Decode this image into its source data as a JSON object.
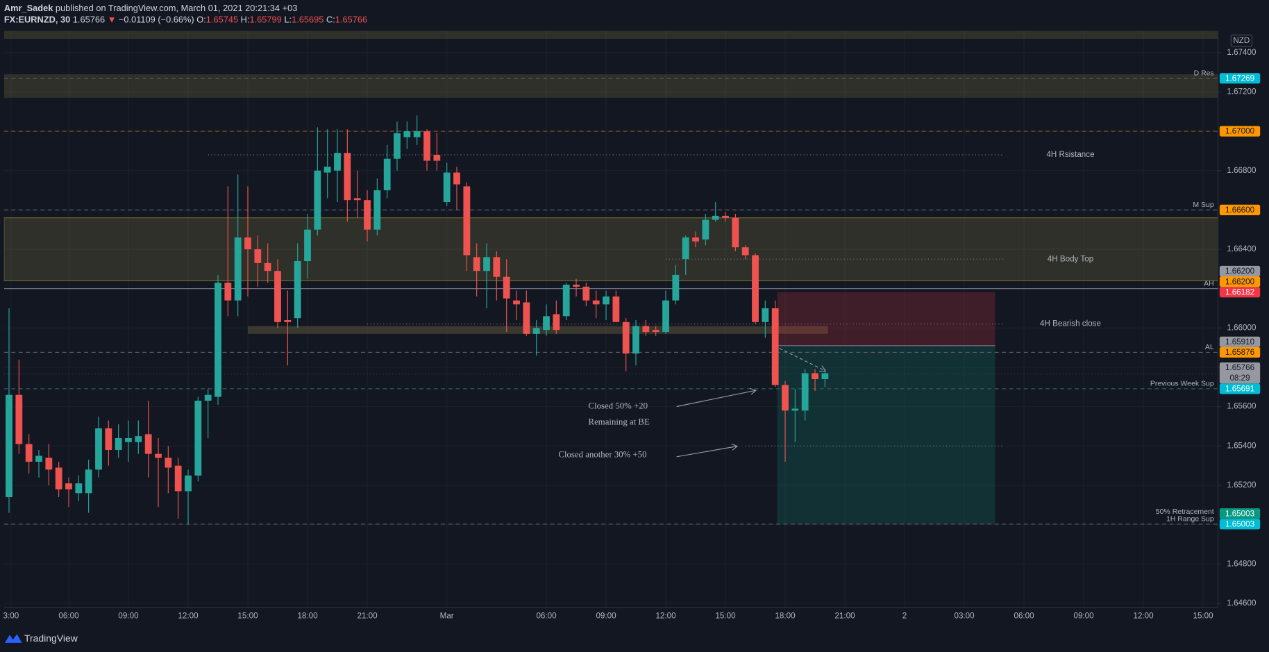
{
  "header": {
    "author": "Amr_Sadek",
    "published": "published on TradingView.com, March 01, 2021 20:21:34 +03",
    "symbol": "FX:EURNZD, 30",
    "last": "1.65766",
    "direction": "▼",
    "change": "−0.01109 (−0.66%)",
    "ohlc": [
      {
        "label": "O:",
        "value": "1.65745"
      },
      {
        "label": "H:",
        "value": "1.65799"
      },
      {
        "label": "L:",
        "value": "1.65695"
      },
      {
        "label": "C:",
        "value": "1.65766"
      }
    ]
  },
  "footer": {
    "brand": "TradingView"
  },
  "annotations": [
    "Closed 50% +20",
    "Remaining at BE",
    "Closed another 30% +50"
  ],
  "chart_data": {
    "type": "candlestick",
    "currency": "NZD",
    "up_color": "#26a69a",
    "down_color": "#ef5350",
    "grid": true,
    "ohlc": {
      "open": [
        1.6514,
        1.6566,
        1.6541,
        1.6532,
        1.6534,
        1.6529,
        1.6521,
        1.6516,
        1.6516,
        1.6528,
        1.6549,
        1.6538,
        1.6542,
        1.6542,
        1.6546,
        1.6536,
        1.6534,
        1.653,
        1.6517,
        1.6525,
        1.6563,
        1.6565,
        1.6623,
        1.6614,
        1.6646,
        1.664,
        1.6633,
        1.6629,
        1.6604,
        1.6605,
        1.6634,
        1.665,
        1.6679,
        1.668,
        1.6689,
        1.6666,
        1.6665,
        1.665,
        1.667,
        1.6686,
        1.6697,
        1.6697,
        1.67,
        1.6688,
        1.6664,
        1.6679,
        1.6672,
        1.6636,
        1.6629,
        1.6636,
        1.6626,
        1.6614,
        1.6613,
        1.6597,
        1.6599,
        1.6607,
        1.6606,
        1.6622,
        1.6621,
        1.6614,
        1.6612,
        1.6616,
        1.6603,
        1.6587,
        1.6601,
        1.6599,
        1.6598,
        1.6614,
        1.6635,
        1.6646,
        1.6645,
        1.6655,
        1.6657,
        1.6656,
        1.6641,
        1.6637,
        1.6603,
        1.661,
        1.6571,
        1.6558,
        1.6558,
        1.6577,
        1.6574
      ],
      "high": [
        1.661,
        1.6584,
        1.6546,
        1.6538,
        1.6541,
        1.6532,
        1.6524,
        1.6525,
        1.6533,
        1.6555,
        1.6553,
        1.6551,
        1.6553,
        1.6553,
        1.6563,
        1.6544,
        1.654,
        1.6534,
        1.6528,
        1.6565,
        1.6569,
        1.6627,
        1.6672,
        1.6678,
        1.6672,
        1.6647,
        1.6643,
        1.6635,
        1.6619,
        1.6643,
        1.6658,
        1.6702,
        1.6701,
        1.6701,
        1.6701,
        1.668,
        1.667,
        1.6676,
        1.6693,
        1.6705,
        1.6705,
        1.6708,
        1.6701,
        1.6699,
        1.6684,
        1.6682,
        1.6674,
        1.6643,
        1.6643,
        1.6639,
        1.6635,
        1.6619,
        1.6619,
        1.6604,
        1.6612,
        1.6614,
        1.6623,
        1.6625,
        1.6623,
        1.6619,
        1.6619,
        1.6619,
        1.6605,
        1.6604,
        1.6604,
        1.6601,
        1.6619,
        1.6632,
        1.6647,
        1.6649,
        1.6658,
        1.6664,
        1.6659,
        1.6658,
        1.6642,
        1.6638,
        1.6614,
        1.6614,
        1.6573,
        1.6569,
        1.6579,
        1.6579,
        1.6579
      ],
      "low": [
        1.6506,
        1.6536,
        1.6526,
        1.6524,
        1.652,
        1.6514,
        1.6509,
        1.6512,
        1.6506,
        1.6524,
        1.653,
        1.6534,
        1.6532,
        1.6536,
        1.6524,
        1.6509,
        1.6516,
        1.6503,
        1.65,
        1.6522,
        1.6544,
        1.6561,
        1.6606,
        1.6606,
        1.6616,
        1.6621,
        1.6623,
        1.66,
        1.6581,
        1.66,
        1.6625,
        1.6647,
        1.6666,
        1.6664,
        1.6654,
        1.6656,
        1.6644,
        1.6647,
        1.6666,
        1.668,
        1.6691,
        1.6693,
        1.668,
        1.668,
        1.6662,
        1.666,
        1.6629,
        1.6616,
        1.661,
        1.6614,
        1.6598,
        1.6604,
        1.6596,
        1.6586,
        1.6596,
        1.6597,
        1.6604,
        1.6616,
        1.6611,
        1.6605,
        1.6604,
        1.6603,
        1.6578,
        1.6581,
        1.6596,
        1.6596,
        1.6597,
        1.6612,
        1.6627,
        1.6641,
        1.6642,
        1.6654,
        1.6654,
        1.6639,
        1.6635,
        1.6602,
        1.6595,
        1.657,
        1.6532,
        1.6542,
        1.6553,
        1.6568,
        1.657
      ],
      "close": [
        1.6566,
        1.6541,
        1.6532,
        1.6535,
        1.6528,
        1.6518,
        1.6518,
        1.6521,
        1.6528,
        1.6549,
        1.6538,
        1.6544,
        1.6544,
        1.6545,
        1.6536,
        1.6534,
        1.6529,
        1.6517,
        1.6525,
        1.6563,
        1.6566,
        1.6623,
        1.6614,
        1.6646,
        1.664,
        1.6633,
        1.6629,
        1.6603,
        1.6603,
        1.6634,
        1.665,
        1.668,
        1.6682,
        1.6689,
        1.6665,
        1.6665,
        1.665,
        1.667,
        1.6686,
        1.6699,
        1.67,
        1.67,
        1.6685,
        1.6685,
        1.6679,
        1.6673,
        1.6637,
        1.6629,
        1.6636,
        1.6626,
        1.6615,
        1.6612,
        1.6597,
        1.66,
        1.6606,
        1.6599,
        1.6622,
        1.6621,
        1.6614,
        1.6612,
        1.6616,
        1.6603,
        1.6587,
        1.6601,
        1.6598,
        1.6598,
        1.6614,
        1.6627,
        1.6646,
        1.6644,
        1.6655,
        1.6657,
        1.6656,
        1.6641,
        1.6637,
        1.6603,
        1.661,
        1.6571,
        1.6558,
        1.6559,
        1.6577,
        1.6574,
        1.6577
      ]
    },
    "xlim": [
      -0.5,
      121.5
    ],
    "xticks": [
      {
        "value": 0.2,
        "label": "3:00"
      },
      {
        "value": 6,
        "label": "06:00"
      },
      {
        "value": 12,
        "label": "09:00"
      },
      {
        "value": 18,
        "label": "12:00"
      },
      {
        "value": 24,
        "label": "15:00"
      },
      {
        "value": 30,
        "label": "18:00"
      },
      {
        "value": 36,
        "label": "21:00"
      },
      {
        "value": 44,
        "label": "Mar"
      },
      {
        "value": 54,
        "label": "06:00"
      },
      {
        "value": 60,
        "label": "09:00"
      },
      {
        "value": 66,
        "label": "12:00"
      },
      {
        "value": 72,
        "label": "15:00"
      },
      {
        "value": 78,
        "label": "18:00"
      },
      {
        "value": 84,
        "label": "21:00"
      },
      {
        "value": 90,
        "label": "2"
      },
      {
        "value": 96,
        "label": "03:00"
      },
      {
        "value": 102,
        "label": "06:00"
      },
      {
        "value": 108,
        "label": "09:00"
      },
      {
        "value": 114,
        "label": "12:00"
      },
      {
        "value": 120,
        "label": "15:00"
      }
    ],
    "ylim": [
      1.6458,
      1.6751
    ],
    "yticks": [
      {
        "value": 1.674,
        "label": "1.67400"
      },
      {
        "value": 1.672,
        "label": "1.67200"
      },
      {
        "value": 1.67,
        "label": "1.67000"
      },
      {
        "value": 1.668,
        "label": "1.66800"
      },
      {
        "value": 1.666,
        "label": "1.66600"
      },
      {
        "value": 1.664,
        "label": "1.66400"
      },
      {
        "value": 1.662,
        "label": "1.66200"
      },
      {
        "value": 1.66,
        "label": "1.66000"
      },
      {
        "value": 1.658,
        "label": "1.65800"
      },
      {
        "value": 1.656,
        "label": "1.65600"
      },
      {
        "value": 1.654,
        "label": "1.65400"
      },
      {
        "value": 1.652,
        "label": "1.65200"
      },
      {
        "value": 1.65,
        "label": "1.65000"
      },
      {
        "value": 1.648,
        "label": "1.64800"
      },
      {
        "value": 1.646,
        "label": "1.64600"
      }
    ],
    "zones": [
      {
        "from": 1.6747,
        "to": 1.6756,
        "x": [
          -0.5,
          121.5
        ],
        "color": "rgba(150,140,70,0.22)"
      },
      {
        "from": 1.6717,
        "to": 1.6729,
        "x": [
          -0.5,
          121.5
        ],
        "color": "rgba(150,140,70,0.22)"
      },
      {
        "from": 1.6624,
        "to": 1.6656,
        "x": [
          -0.5,
          121.5
        ],
        "color": "rgba(150,140,70,0.22)",
        "border": "#6f6a2c"
      },
      {
        "from": 1.6597,
        "to": 1.6601,
        "x": [
          24,
          82.3
        ],
        "color": "rgba(130,115,70,0.35)"
      }
    ],
    "position": {
      "stop": 1.66182,
      "entry": 1.6591,
      "target": 1.65003,
      "x": [
        77.2,
        99.1
      ],
      "stop_color": "rgba(242,54,69,0.2)",
      "target_color": "rgba(8,153,129,0.2)"
    },
    "segments": [
      {
        "value": 1.6688,
        "x": [
          20,
          100
        ],
        "text": "4H Rsistance"
      },
      {
        "value": 1.6635,
        "x": [
          66,
          100
        ],
        "text": "4H Body Top"
      },
      {
        "value": 1.6602,
        "x": [
          36,
          100
        ],
        "text": "4H Bearish close"
      },
      {
        "value": 1.654,
        "x": [
          74,
          100
        ]
      }
    ],
    "levels": [
      {
        "value": 1.67269,
        "label": "1.67269",
        "color": "#00bcd4",
        "line": {
          "style": "dashed",
          "color": "#5d606b"
        },
        "text": [
          "D Res"
        ]
      },
      {
        "value": 1.67,
        "label": "1.67000",
        "color": "#ff9800",
        "line": {
          "style": "dashed",
          "color": "#8a5a1e"
        }
      },
      {
        "value": 1.666,
        "label": "1.66600",
        "color": "#ff9800",
        "line": {
          "style": "dashed",
          "color": "#5d606b"
        },
        "text": [
          "M Sup"
        ]
      },
      {
        "value": 1.662,
        "label": "1.66200",
        "color": "#9598a1",
        "line": {
          "style": "solid",
          "color": "#787b86"
        }
      },
      {
        "value": 1.662,
        "label": "1.66200",
        "color": "#ff9800",
        "text": [
          "AH"
        ]
      },
      {
        "value": 1.66182,
        "label": "1.66182",
        "color": "#f23645"
      },
      {
        "value": 1.6591,
        "label": "1.65910",
        "color": "#9598a1"
      },
      {
        "value": 1.65876,
        "label": "1.65876",
        "color": "#ff9800",
        "line": {
          "style": "dashed",
          "color": "#5d606b"
        },
        "text": [
          "AL"
        ]
      },
      {
        "value": 1.65766,
        "label": "1.65766",
        "color": "#9598a1",
        "line": {
          "style": "dotted",
          "color": "#363a45"
        },
        "countdown": "08:29"
      },
      {
        "value": 1.65691,
        "label": "1.65691",
        "color": "#00bcd4",
        "line": {
          "style": "dashed",
          "color": "#2a5a6a"
        },
        "text": [
          "Previous Week Sup"
        ]
      },
      {
        "value": 1.65003,
        "label": "1.65003",
        "color": "#089981",
        "line": {
          "style": "dashed",
          "color": "#5d606b"
        },
        "text": [
          "50% Retracement",
          "1H Range Sup"
        ]
      },
      {
        "value": 1.65003,
        "label": "1.65003",
        "color": "#00bcd4"
      }
    ]
  }
}
